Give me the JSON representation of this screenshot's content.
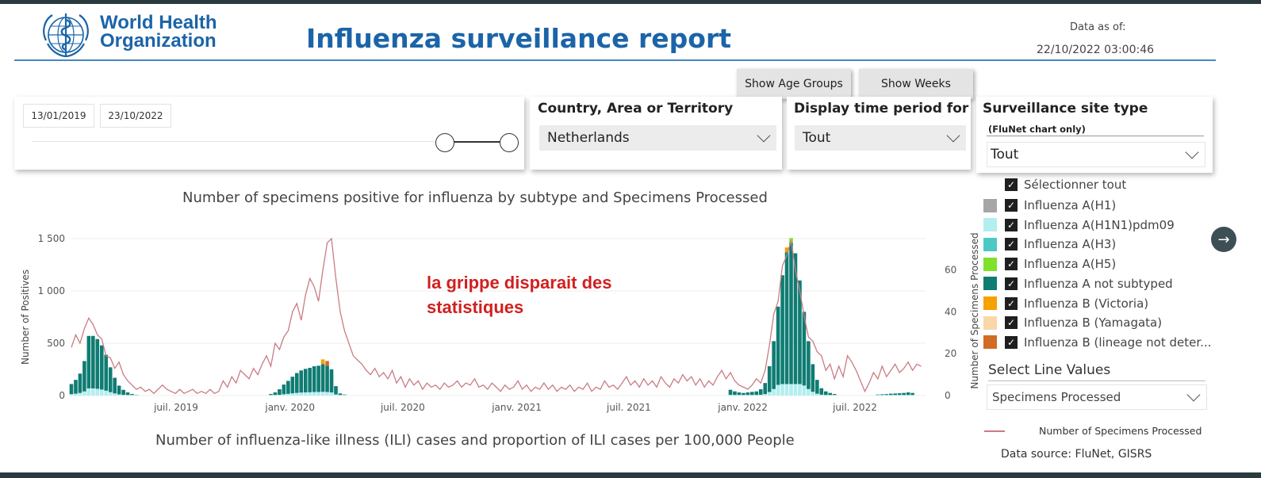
{
  "header": {
    "logo_line1": "World Health",
    "logo_line2": "Organization",
    "title": "Influenza surveillance report",
    "data_as_of_label": "Data as of:",
    "data_as_of_value": "22/10/2022 03:00:46"
  },
  "buttons": {
    "age_groups": "Show Age Groups",
    "weeks": "Show Weeks"
  },
  "date_filter": {
    "start": "13/01/2019",
    "end": "23/10/2022"
  },
  "filters": {
    "country_title": "Country, Area or Territory",
    "country_value": "Netherlands",
    "period_title": "Display time period for",
    "period_value": "Tout",
    "site_title": "Surveillance site type",
    "site_subtitle": "(FluNet chart only)",
    "site_value": "Tout"
  },
  "chart": {
    "title": "Number of specimens positive for influenza by subtype and Specimens Processed",
    "annotation_line1": "la grippe disparait des",
    "annotation_line2": "statistiques",
    "ili_title": "Number of influenza-like illness (ILI) cases and proportion of ILI cases per 100,000 People"
  },
  "legend": {
    "select_all": "Sélectionner tout",
    "items": [
      {
        "label": "Influenza A(H1)",
        "color": "#a6a6a6"
      },
      {
        "label": "Influenza A(H1N1)pdm09",
        "color": "#b3eef0"
      },
      {
        "label": "Influenza A(H3)",
        "color": "#4cc9c5"
      },
      {
        "label": "Influenza A(H5)",
        "color": "#7ee12a"
      },
      {
        "label": "Influenza A not subtyped",
        "color": "#0f7c73"
      },
      {
        "label": "Influenza B (Victoria)",
        "color": "#f5a100"
      },
      {
        "label": "Influenza B (Yamagata)",
        "color": "#fad7a8"
      },
      {
        "label": "Influenza B (lineage not deter...",
        "color": "#d26c24"
      }
    ],
    "line_values_title": "Select Line Values",
    "line_values_value": "Specimens Processed",
    "line_legend_label": "Number of Specimens Processed",
    "data_source": "Data source: FluNet, GISRS"
  },
  "chart_data": {
    "type": "bar",
    "title": "Number of specimens positive for influenza by subtype and Specimens Processed",
    "ylabel": "Number of Positives",
    "y2label": "Number of Specimens Processed",
    "ylim": [
      0,
      1500
    ],
    "y2lim": [
      0,
      75
    ],
    "yticks": [
      0,
      500,
      1000,
      1500
    ],
    "ytick_labels": [
      "0",
      "500",
      "1 000",
      "1 500"
    ],
    "y2ticks": [
      0,
      20,
      40,
      60
    ],
    "xlim": [
      "2019-01-13",
      "2022-10-23"
    ],
    "xticks": [
      "2019-07-01",
      "2020-01-01",
      "2020-07-01",
      "2021-01-01",
      "2021-07-01",
      "2022-01-01",
      "2022-07-01"
    ],
    "xtick_labels": [
      "juil. 2019",
      "janv. 2020",
      "juil. 2020",
      "janv. 2021",
      "juil. 2021",
      "janv. 2022",
      "juil. 2022"
    ],
    "grid": true,
    "legend_position": "right",
    "bars_not_subtyped": {
      "name": "Influenza A not subtyped",
      "points": [
        [
          "2019-01-13",
          110
        ],
        [
          "2019-01-20",
          150
        ],
        [
          "2019-01-27",
          210
        ],
        [
          "2019-02-03",
          330
        ],
        [
          "2019-02-10",
          570
        ],
        [
          "2019-02-17",
          570
        ],
        [
          "2019-02-24",
          540
        ],
        [
          "2019-03-03",
          480
        ],
        [
          "2019-03-10",
          390
        ],
        [
          "2019-03-17",
          270
        ],
        [
          "2019-03-24",
          170
        ],
        [
          "2019-03-31",
          95
        ],
        [
          "2019-04-07",
          55
        ],
        [
          "2019-04-14",
          30
        ],
        [
          "2019-04-21",
          15
        ],
        [
          "2019-04-28",
          8
        ],
        [
          "2019-12-01",
          15
        ],
        [
          "2019-12-08",
          30
        ],
        [
          "2019-12-15",
          60
        ],
        [
          "2019-12-22",
          105
        ],
        [
          "2019-12-29",
          140
        ],
        [
          "2020-01-05",
          180
        ],
        [
          "2020-01-12",
          215
        ],
        [
          "2020-01-19",
          240
        ],
        [
          "2020-01-26",
          255
        ],
        [
          "2020-02-02",
          265
        ],
        [
          "2020-02-09",
          280
        ],
        [
          "2020-02-16",
          285
        ],
        [
          "2020-02-23",
          300
        ],
        [
          "2020-03-01",
          285
        ],
        [
          "2020-03-08",
          250
        ],
        [
          "2020-03-15",
          90
        ],
        [
          "2020-03-22",
          20
        ],
        [
          "2020-03-29",
          10
        ],
        [
          "2021-12-12",
          55
        ],
        [
          "2021-12-19",
          40
        ],
        [
          "2021-12-26",
          30
        ],
        [
          "2022-01-02",
          25
        ],
        [
          "2022-01-09",
          30
        ],
        [
          "2022-01-16",
          35
        ],
        [
          "2022-01-23",
          40
        ],
        [
          "2022-01-30",
          60
        ],
        [
          "2022-02-06",
          120
        ],
        [
          "2022-02-13",
          280
        ],
        [
          "2022-02-20",
          520
        ],
        [
          "2022-02-27",
          850
        ],
        [
          "2022-03-06",
          1150
        ],
        [
          "2022-03-13",
          1370
        ],
        [
          "2022-03-20",
          1460
        ],
        [
          "2022-03-27",
          1360
        ],
        [
          "2022-04-03",
          1100
        ],
        [
          "2022-04-10",
          800
        ],
        [
          "2022-04-17",
          520
        ],
        [
          "2022-04-24",
          300
        ],
        [
          "2022-05-01",
          150
        ],
        [
          "2022-05-08",
          70
        ],
        [
          "2022-05-15",
          40
        ],
        [
          "2022-05-22",
          25
        ],
        [
          "2022-05-29",
          15
        ],
        [
          "2022-08-07",
          10
        ],
        [
          "2022-08-14",
          12
        ],
        [
          "2022-08-21",
          14
        ],
        [
          "2022-08-28",
          18
        ],
        [
          "2022-09-04",
          20
        ],
        [
          "2022-09-11",
          22
        ],
        [
          "2022-09-18",
          25
        ],
        [
          "2022-09-25",
          30
        ],
        [
          "2022-10-02",
          25
        ]
      ]
    },
    "line_specimens_processed": {
      "name": "Number of Specimens Processed",
      "points": [
        [
          "2019-01-13",
          23
        ],
        [
          "2019-01-20",
          29
        ],
        [
          "2019-01-27",
          25
        ],
        [
          "2019-02-03",
          32
        ],
        [
          "2019-02-10",
          37
        ],
        [
          "2019-02-17",
          34
        ],
        [
          "2019-02-24",
          29
        ],
        [
          "2019-03-03",
          27
        ],
        [
          "2019-03-10",
          19
        ],
        [
          "2019-03-17",
          18
        ],
        [
          "2019-03-24",
          13
        ],
        [
          "2019-03-31",
          16
        ],
        [
          "2019-04-07",
          10
        ],
        [
          "2019-04-14",
          7
        ],
        [
          "2019-04-21",
          5
        ],
        [
          "2019-04-28",
          3
        ],
        [
          "2019-05-05",
          4
        ],
        [
          "2019-05-12",
          2
        ],
        [
          "2019-05-19",
          3
        ],
        [
          "2019-05-26",
          1
        ],
        [
          "2019-06-02",
          3
        ],
        [
          "2019-06-09",
          5
        ],
        [
          "2019-06-16",
          3
        ],
        [
          "2019-06-23",
          2
        ],
        [
          "2019-06-30",
          1
        ],
        [
          "2019-07-07",
          3
        ],
        [
          "2019-07-14",
          1
        ],
        [
          "2019-07-21",
          2
        ],
        [
          "2019-07-28",
          3
        ],
        [
          "2019-08-04",
          1
        ],
        [
          "2019-08-11",
          2
        ],
        [
          "2019-08-18",
          1
        ],
        [
          "2019-08-25",
          3
        ],
        [
          "2019-09-01",
          1
        ],
        [
          "2019-09-08",
          2
        ],
        [
          "2019-09-15",
          7
        ],
        [
          "2019-09-22",
          4
        ],
        [
          "2019-09-29",
          9
        ],
        [
          "2019-10-06",
          6
        ],
        [
          "2019-10-13",
          12
        ],
        [
          "2019-10-20",
          10
        ],
        [
          "2019-10-27",
          8
        ],
        [
          "2019-11-03",
          13
        ],
        [
          "2019-11-10",
          10
        ],
        [
          "2019-11-17",
          15
        ],
        [
          "2019-11-24",
          19
        ],
        [
          "2019-12-01",
          14
        ],
        [
          "2019-12-08",
          25
        ],
        [
          "2019-12-15",
          22
        ],
        [
          "2019-12-22",
          28
        ],
        [
          "2019-12-29",
          31
        ],
        [
          "2020-01-05",
          40
        ],
        [
          "2020-01-12",
          44
        ],
        [
          "2020-01-19",
          36
        ],
        [
          "2020-01-26",
          48
        ],
        [
          "2020-02-02",
          56
        ],
        [
          "2020-02-09",
          52
        ],
        [
          "2020-02-16",
          45
        ],
        [
          "2020-02-23",
          60
        ],
        [
          "2020-03-01",
          73
        ],
        [
          "2020-03-08",
          75
        ],
        [
          "2020-03-15",
          56
        ],
        [
          "2020-03-22",
          40
        ],
        [
          "2020-03-29",
          31
        ],
        [
          "2020-04-05",
          25
        ],
        [
          "2020-04-12",
          19
        ],
        [
          "2020-04-19",
          17
        ],
        [
          "2020-04-26",
          15
        ],
        [
          "2020-05-03",
          12
        ],
        [
          "2020-05-10",
          10
        ],
        [
          "2020-05-17",
          13
        ],
        [
          "2020-05-24",
          9
        ],
        [
          "2020-05-31",
          11
        ],
        [
          "2020-06-07",
          8
        ],
        [
          "2020-06-14",
          12
        ],
        [
          "2020-06-21",
          6
        ],
        [
          "2020-06-28",
          9
        ],
        [
          "2020-07-05",
          4
        ],
        [
          "2020-07-12",
          8
        ],
        [
          "2020-07-19",
          5
        ],
        [
          "2020-07-26",
          7
        ],
        [
          "2020-08-02",
          3
        ],
        [
          "2020-08-09",
          6
        ],
        [
          "2020-08-16",
          4
        ],
        [
          "2020-08-23",
          5
        ],
        [
          "2020-08-30",
          3
        ],
        [
          "2020-09-06",
          6
        ],
        [
          "2020-09-13",
          4
        ],
        [
          "2020-09-20",
          5
        ],
        [
          "2020-09-27",
          7
        ],
        [
          "2020-10-04",
          4
        ],
        [
          "2020-10-11",
          6
        ],
        [
          "2020-10-18",
          5
        ],
        [
          "2020-10-25",
          8
        ],
        [
          "2020-11-01",
          4
        ],
        [
          "2020-11-08",
          5
        ],
        [
          "2020-11-15",
          3
        ],
        [
          "2020-11-22",
          6
        ],
        [
          "2020-11-29",
          4
        ],
        [
          "2020-12-06",
          2
        ],
        [
          "2020-12-13",
          5
        ],
        [
          "2020-12-20",
          3
        ],
        [
          "2020-12-27",
          4
        ],
        [
          "2021-01-03",
          7
        ],
        [
          "2021-01-10",
          3
        ],
        [
          "2021-01-17",
          5
        ],
        [
          "2021-01-24",
          2
        ],
        [
          "2021-01-31",
          4
        ],
        [
          "2021-02-07",
          3
        ],
        [
          "2021-02-14",
          6
        ],
        [
          "2021-02-21",
          3
        ],
        [
          "2021-02-28",
          5
        ],
        [
          "2021-03-07",
          2
        ],
        [
          "2021-03-14",
          4
        ],
        [
          "2021-03-21",
          3
        ],
        [
          "2021-03-28",
          5
        ],
        [
          "2021-04-04",
          2
        ],
        [
          "2021-04-11",
          4
        ],
        [
          "2021-04-18",
          3
        ],
        [
          "2021-04-25",
          6
        ],
        [
          "2021-05-02",
          2
        ],
        [
          "2021-05-09",
          4
        ],
        [
          "2021-05-16",
          3
        ],
        [
          "2021-05-23",
          7
        ],
        [
          "2021-05-30",
          4
        ],
        [
          "2021-06-06",
          5
        ],
        [
          "2021-06-13",
          3
        ],
        [
          "2021-06-20",
          6
        ],
        [
          "2021-06-27",
          9
        ],
        [
          "2021-07-04",
          5
        ],
        [
          "2021-07-11",
          7
        ],
        [
          "2021-07-18",
          4
        ],
        [
          "2021-07-25",
          8
        ],
        [
          "2021-08-01",
          5
        ],
        [
          "2021-08-08",
          7
        ],
        [
          "2021-08-15",
          4
        ],
        [
          "2021-08-22",
          9
        ],
        [
          "2021-08-29",
          6
        ],
        [
          "2021-09-05",
          4
        ],
        [
          "2021-09-12",
          8
        ],
        [
          "2021-09-19",
          6
        ],
        [
          "2021-09-26",
          10
        ],
        [
          "2021-10-03",
          7
        ],
        [
          "2021-10-10",
          9
        ],
        [
          "2021-10-17",
          5
        ],
        [
          "2021-10-24",
          8
        ],
        [
          "2021-10-31",
          4
        ],
        [
          "2021-11-07",
          7
        ],
        [
          "2021-11-14",
          5
        ],
        [
          "2021-11-21",
          9
        ],
        [
          "2021-11-28",
          12
        ],
        [
          "2021-12-05",
          8
        ],
        [
          "2021-12-12",
          11
        ],
        [
          "2021-12-19",
          7
        ],
        [
          "2021-12-26",
          5
        ],
        [
          "2022-01-02",
          4
        ],
        [
          "2022-01-09",
          3
        ],
        [
          "2022-01-16",
          5
        ],
        [
          "2022-01-23",
          8
        ],
        [
          "2022-01-30",
          6
        ],
        [
          "2022-02-06",
          12
        ],
        [
          "2022-02-13",
          24
        ],
        [
          "2022-02-20",
          39
        ],
        [
          "2022-02-27",
          45
        ],
        [
          "2022-03-06",
          62
        ],
        [
          "2022-03-13",
          67
        ],
        [
          "2022-03-20",
          74
        ],
        [
          "2022-03-27",
          60
        ],
        [
          "2022-04-03",
          50
        ],
        [
          "2022-04-10",
          38
        ],
        [
          "2022-04-17",
          28
        ],
        [
          "2022-04-24",
          26
        ],
        [
          "2022-05-01",
          21
        ],
        [
          "2022-05-08",
          19
        ],
        [
          "2022-05-15",
          12
        ],
        [
          "2022-05-22",
          15
        ],
        [
          "2022-05-29",
          8
        ],
        [
          "2022-06-05",
          14
        ],
        [
          "2022-06-12",
          9
        ],
        [
          "2022-06-19",
          19
        ],
        [
          "2022-06-26",
          16
        ],
        [
          "2022-07-03",
          12
        ],
        [
          "2022-07-10",
          7
        ],
        [
          "2022-07-17",
          2
        ],
        [
          "2022-07-24",
          6
        ],
        [
          "2022-07-31",
          11
        ],
        [
          "2022-08-07",
          8
        ],
        [
          "2022-08-14",
          14
        ],
        [
          "2022-08-21",
          9
        ],
        [
          "2022-08-28",
          12
        ],
        [
          "2022-09-04",
          15
        ],
        [
          "2022-09-11",
          11
        ],
        [
          "2022-09-18",
          13
        ],
        [
          "2022-09-25",
          16
        ],
        [
          "2022-10-02",
          12
        ],
        [
          "2022-10-09",
          15
        ],
        [
          "2022-10-16",
          14
        ]
      ]
    }
  }
}
